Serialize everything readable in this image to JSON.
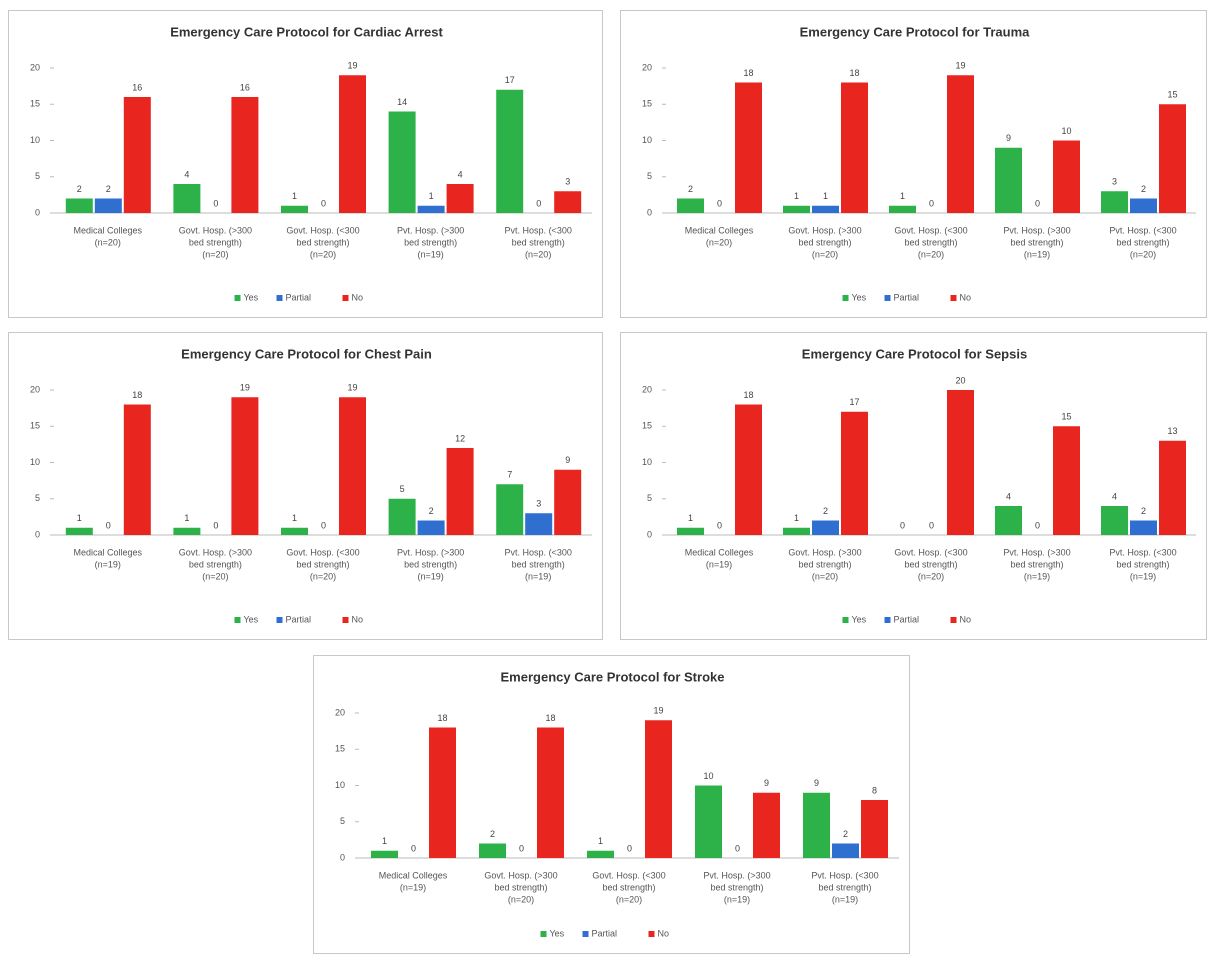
{
  "chart_data": [
    {
      "type": "bar",
      "title": "Emergency Care Protocol for Cardiac Arrest",
      "categories": [
        [
          "Medical Colleges",
          "(n=20)"
        ],
        [
          "Govt. Hosp. (>300",
          "bed strength)",
          "(n=20)"
        ],
        [
          "Govt. Hosp. (<300",
          "bed strength)",
          "(n=20)"
        ],
        [
          "Pvt. Hosp. (>300",
          "bed strength)",
          "(n=19)"
        ],
        [
          "Pvt. Hosp. (<300",
          "bed strength)",
          "(n=20)"
        ]
      ],
      "series": [
        {
          "name": "Yes",
          "color": "#2db24a",
          "values": [
            2,
            4,
            1,
            14,
            17
          ]
        },
        {
          "name": "Partial",
          "color": "#2e6fd0",
          "values": [
            2,
            0,
            0,
            1,
            0
          ]
        },
        {
          "name": "No",
          "color": "#e8251f",
          "values": [
            16,
            16,
            19,
            4,
            3
          ]
        }
      ],
      "ylim": [
        0,
        20
      ],
      "yticks": [
        0,
        5,
        10,
        15,
        20
      ],
      "legend": "bottom"
    },
    {
      "type": "bar",
      "title": "Emergency Care Protocol for Trauma",
      "categories": [
        [
          "Medical Colleges",
          "(n=20)"
        ],
        [
          "Govt. Hosp. (>300",
          "bed strength)",
          "(n=20)"
        ],
        [
          "Govt. Hosp. (<300",
          "bed strength)",
          "(n=20)"
        ],
        [
          "Pvt. Hosp. (>300",
          "bed strength)",
          "(n=19)"
        ],
        [
          "Pvt. Hosp. (<300",
          "bed strength)",
          "(n=20)"
        ]
      ],
      "series": [
        {
          "name": "Yes",
          "color": "#2db24a",
          "values": [
            2,
            1,
            1,
            9,
            3
          ]
        },
        {
          "name": "Partial",
          "color": "#2e6fd0",
          "values": [
            0,
            1,
            0,
            0,
            2
          ]
        },
        {
          "name": "No",
          "color": "#e8251f",
          "values": [
            18,
            18,
            19,
            10,
            15
          ]
        }
      ],
      "ylim": [
        0,
        20
      ],
      "yticks": [
        0,
        5,
        10,
        15,
        20
      ],
      "legend": "bottom"
    },
    {
      "type": "bar",
      "title": "Emergency Care Protocol for Chest Pain",
      "categories": [
        [
          "Medical Colleges",
          "(n=19)"
        ],
        [
          "Govt. Hosp. (>300",
          "bed strength)",
          "(n=20)"
        ],
        [
          "Govt. Hosp. (<300",
          "bed strength)",
          "(n=20)"
        ],
        [
          "Pvt. Hosp. (>300",
          "bed strength)",
          "(n=19)"
        ],
        [
          "Pvt. Hosp. (<300",
          "bed strength)",
          "(n=19)"
        ]
      ],
      "series": [
        {
          "name": "Yes",
          "color": "#2db24a",
          "values": [
            1,
            1,
            1,
            5,
            7
          ]
        },
        {
          "name": "Partial",
          "color": "#2e6fd0",
          "values": [
            0,
            0,
            0,
            2,
            3
          ]
        },
        {
          "name": "No",
          "color": "#e8251f",
          "values": [
            18,
            19,
            19,
            12,
            9
          ]
        }
      ],
      "ylim": [
        0,
        20
      ],
      "yticks": [
        0,
        5,
        10,
        15,
        20
      ],
      "legend": "bottom"
    },
    {
      "type": "bar",
      "title": "Emergency Care Protocol for Sepsis",
      "categories": [
        [
          "Medical Colleges",
          "(n=19)"
        ],
        [
          "Govt. Hosp. (>300",
          "bed strength)",
          "(n=20)"
        ],
        [
          "Govt. Hosp. (<300",
          "bed strength)",
          "(n=20)"
        ],
        [
          "Pvt. Hosp. (>300",
          "bed strength)",
          "(n=19)"
        ],
        [
          "Pvt. Hosp. (<300",
          "bed strength)",
          "(n=19)"
        ]
      ],
      "series": [
        {
          "name": "Yes",
          "color": "#2db24a",
          "values": [
            1,
            1,
            0,
            4,
            4
          ]
        },
        {
          "name": "Partial",
          "color": "#2e6fd0",
          "values": [
            0,
            2,
            0,
            0,
            2
          ]
        },
        {
          "name": "No",
          "color": "#e8251f",
          "values": [
            18,
            17,
            20,
            15,
            13
          ]
        }
      ],
      "ylim": [
        0,
        20
      ],
      "yticks": [
        0,
        5,
        10,
        15,
        20
      ],
      "legend": "bottom"
    },
    {
      "type": "bar",
      "title": "Emergency Care Protocol for Stroke",
      "categories": [
        [
          "Medical Colleges",
          "(n=19)"
        ],
        [
          "Govt. Hosp. (>300",
          "bed strength)",
          "(n=20)"
        ],
        [
          "Govt. Hosp. (<300",
          "bed strength)",
          "(n=20)"
        ],
        [
          "Pvt. Hosp. (>300",
          "bed strength)",
          "(n=19)"
        ],
        [
          "Pvt. Hosp. (<300",
          "bed strength)",
          "(n=19)"
        ]
      ],
      "series": [
        {
          "name": "Yes",
          "color": "#2db24a",
          "values": [
            1,
            2,
            1,
            10,
            9
          ]
        },
        {
          "name": "Partial",
          "color": "#2e6fd0",
          "values": [
            0,
            0,
            0,
            0,
            2
          ]
        },
        {
          "name": "No",
          "color": "#e8251f",
          "values": [
            18,
            18,
            19,
            9,
            8
          ]
        }
      ],
      "ylim": [
        0,
        20
      ],
      "yticks": [
        0,
        5,
        10,
        15,
        20
      ],
      "legend": "bottom"
    }
  ]
}
